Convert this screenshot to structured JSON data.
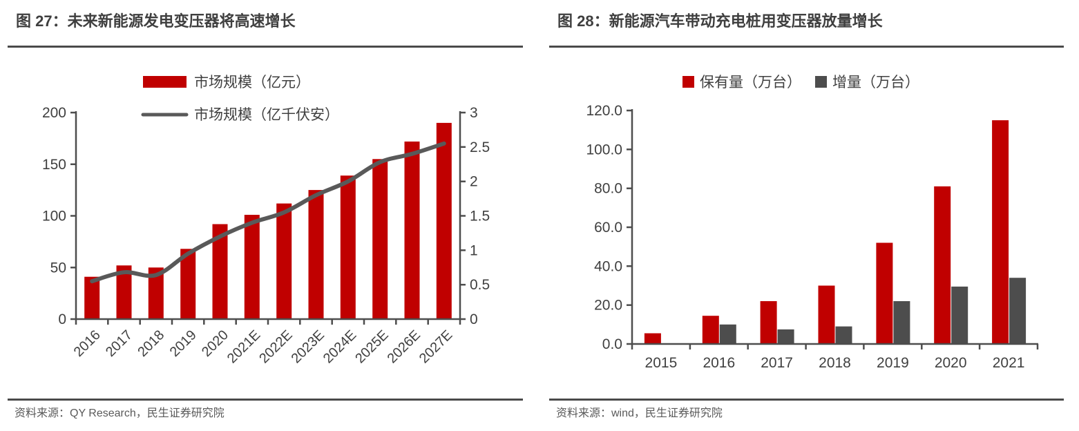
{
  "colors": {
    "bar_red": "#C00000",
    "bar_gray": "#4D4D4D",
    "line_gray": "#595959",
    "axis_line": "#4D4D4D",
    "axis_text": "#404040",
    "legend_text": "#3F3F3F",
    "title_text": "#3F3F3F",
    "source_text": "#595959",
    "rule": "#4A4A4A"
  },
  "figure27": {
    "title": "图 27：未来新能源发电变压器将高速增长",
    "source": "资料来源：QY Research，民生证券研究院",
    "chart_data": {
      "type": "bar+line",
      "categories": [
        "2016",
        "2017",
        "2018",
        "2019",
        "2020",
        "2021E",
        "2022E",
        "2023E",
        "2024E",
        "2025E",
        "2026E",
        "2027E"
      ],
      "series": [
        {
          "name": "市场规模（亿元）",
          "type": "bar",
          "axis": "left",
          "color": "#C00000",
          "values": [
            41,
            52,
            50,
            68,
            92,
            101,
            112,
            125,
            139,
            155,
            172,
            190
          ]
        },
        {
          "name": "市场规模（亿千伏安）",
          "type": "line",
          "axis": "right",
          "color": "#595959",
          "values": [
            0.55,
            0.68,
            0.64,
            0.95,
            1.2,
            1.4,
            1.55,
            1.8,
            2.0,
            2.28,
            2.4,
            2.55
          ]
        }
      ],
      "left_axis": {
        "min": 0,
        "max": 200,
        "tick_step": 50
      },
      "right_axis": {
        "min": 0,
        "max": 3,
        "tick_step": 0.5
      },
      "legend_position": "top-left-stacked",
      "grid": false
    }
  },
  "figure28": {
    "title": "图 28：新能源汽车带动充电桩用变压器放量增长",
    "source": "资料来源：wind，民生证券研究院",
    "chart_data": {
      "type": "bar",
      "categories": [
        "2015",
        "2016",
        "2017",
        "2018",
        "2019",
        "2020",
        "2021"
      ],
      "series": [
        {
          "name": "保有量（万台）",
          "color": "#C00000",
          "values": [
            5.5,
            14.5,
            22,
            30,
            52,
            81,
            115
          ]
        },
        {
          "name": "增量（万台）",
          "color": "#4D4D4D",
          "values": [
            0,
            10,
            7.5,
            9,
            22,
            29.5,
            34
          ]
        }
      ],
      "y_axis": {
        "min": 0,
        "max": 120,
        "tick_step": 20,
        "tick_decimals": 1
      },
      "legend_position": "top",
      "grid": false
    }
  }
}
